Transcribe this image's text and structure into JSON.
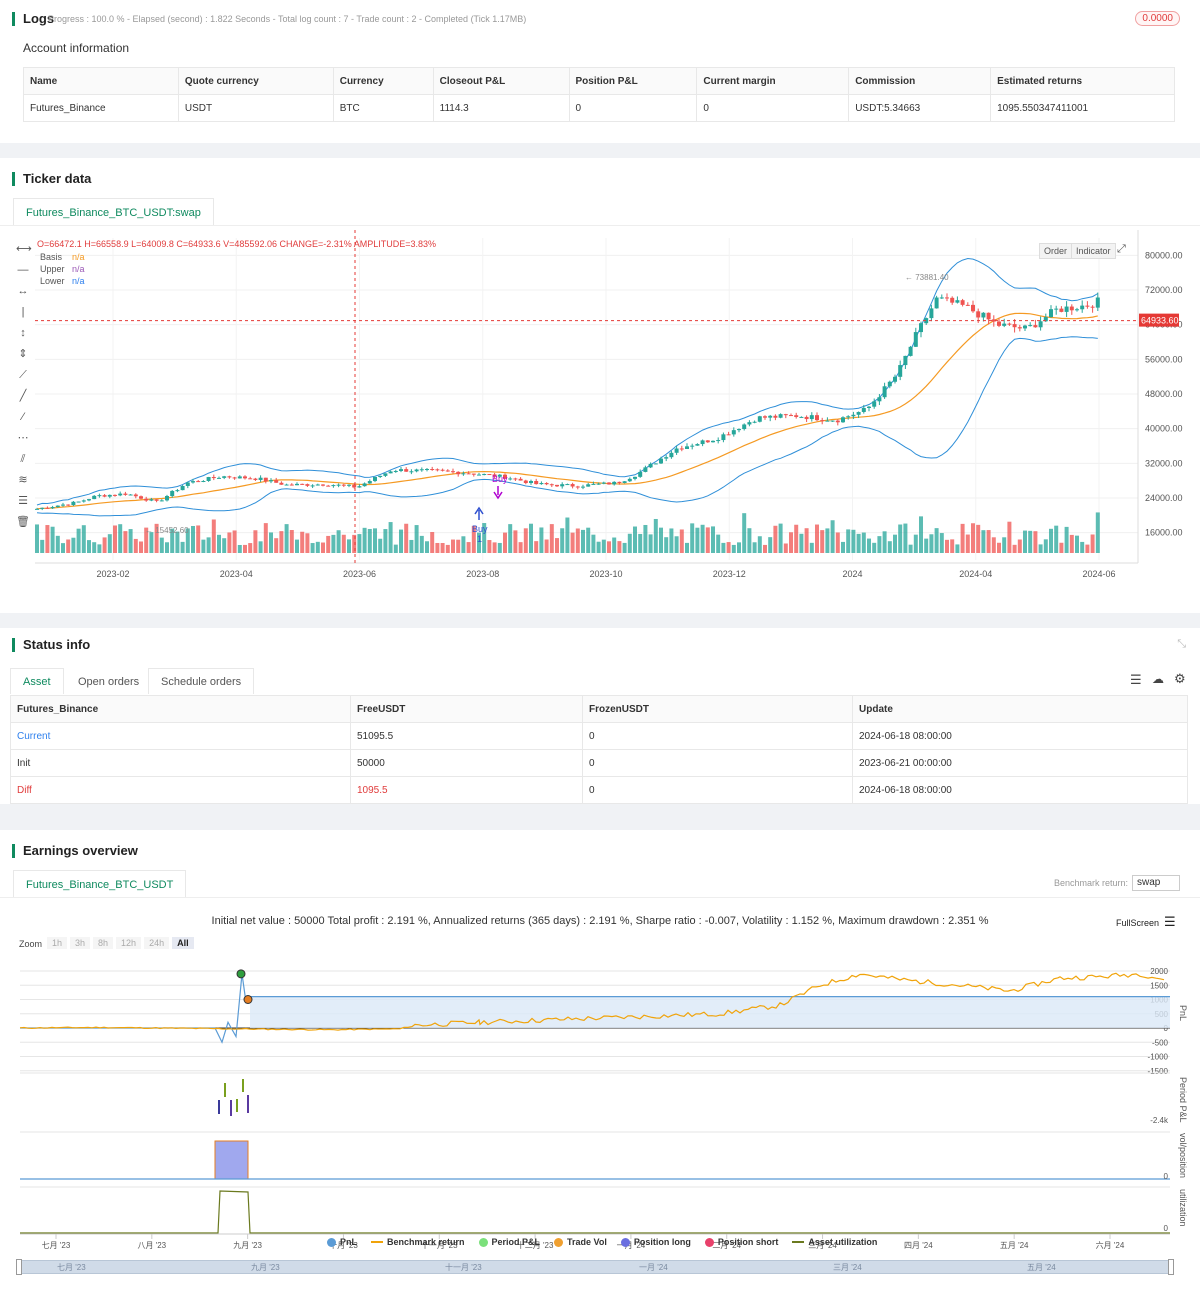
{
  "logs": {
    "title": "Logs",
    "progress": "Progress : 100.0 % - Elapsed (second) : 1.822  Seconds - Total log count : 7 - Trade count : 2 - Completed (Tick 1.17MB)",
    "badge": "0.0000",
    "account_title": "Account information",
    "account_headers": [
      "Name",
      "Quote currency",
      "Currency",
      "Closeout P&L",
      "Position P&L",
      "Current margin",
      "Commission",
      "Estimated returns"
    ],
    "account_row": [
      "Futures_Binance",
      "USDT",
      "BTC",
      "1114.3",
      "0",
      "0",
      "USDT:5.34663",
      "1095.550347411001"
    ]
  },
  "ticker": {
    "title": "Ticker data",
    "tab": "Futures_Binance_BTC_USDT:swap",
    "ohlc": "O=66472.1 H=66558.9 L=64009.8 C=64933.6 V=485592.06 CHANGE=-2.31% AMPLITUDE=3.83%",
    "legend": [
      {
        "name": "Basis",
        "value": "n/a",
        "color": "#f59a23"
      },
      {
        "name": "Upper",
        "value": "n/a",
        "color": "#9b59b6"
      },
      {
        "name": "Lower",
        "value": "n/a",
        "color": "#2f80ed"
      }
    ],
    "buttons": [
      "Order",
      "Indicator"
    ],
    "price_ticks": [
      "80000.00",
      "72000.00",
      "64000.00",
      "56000.00",
      "48000.00",
      "40000.00",
      "32000.00",
      "24000.00",
      "16000.00"
    ],
    "current_price": "64933.60",
    "x_ticks": [
      "2023-02",
      "2023-04",
      "2023-06",
      "2023-08",
      "2023-10",
      "2023-12",
      "2024",
      "2024-04",
      "2024-06"
    ],
    "high_label": "73881.40",
    "low_label": "15452.60",
    "buy_label": "Buy",
    "buy_count": "1"
  },
  "status": {
    "title": "Status info",
    "tabs": [
      "Asset",
      "Open orders",
      "Schedule orders"
    ],
    "headers": [
      "Futures_Binance",
      "FreeUSDT",
      "FrozenUSDT",
      "Update"
    ],
    "rows": [
      {
        "label": "Current",
        "free": "51095.5",
        "frozen": "0",
        "update": "2024-06-18 08:00:00"
      },
      {
        "label": "Init",
        "free": "50000",
        "frozen": "0",
        "update": "2023-06-21 00:00:00"
      },
      {
        "label": "Diff",
        "free": "1095.5",
        "frozen": "0",
        "update": "2024-06-18 08:00:00"
      }
    ]
  },
  "earnings": {
    "title": "Earnings overview",
    "tab": "Futures_Binance_BTC_USDT",
    "benchmark_label": "Benchmark return:",
    "benchmark_value": "swap",
    "summary": "Initial net value : 50000  Total profit : 2.191 %, Annualized returns (365 days) : 2.191 %, Sharpe ratio : -0.007, Volatility : 1.152 %, Maximum drawdown : 2.351 %",
    "fullscreen": "FullScreen",
    "zoom_label": "Zoom",
    "zoom_options": [
      "1h",
      "3h",
      "8h",
      "12h",
      "24h",
      "All"
    ],
    "y_ticks": [
      "2000",
      "1500",
      "1000",
      "500",
      "0",
      "-500",
      "-1000",
      "-1500"
    ],
    "period_tick": "-2.4k",
    "pos_tick": "0",
    "util_tick": "0",
    "axis_titles": [
      "PnL",
      "Period P&L",
      "vol/position",
      "utilization"
    ],
    "x_ticks": [
      "七月 '23",
      "八月 '23",
      "九月 '23",
      "十月 '23",
      "十一月 '23",
      "十二月 '23",
      "一月 '24",
      "二月 '24",
      "三月 '24",
      "四月 '24",
      "五月 '24",
      "六月 '24"
    ],
    "legend": [
      {
        "name": "PnL",
        "color": "#5b9bd5",
        "kind": "dot"
      },
      {
        "name": "Benchmark return",
        "color": "#f0a30a",
        "kind": "line"
      },
      {
        "name": "Period P&L",
        "color": "#7be07b",
        "kind": "dot"
      },
      {
        "name": "Trade Vol",
        "color": "#f0a030",
        "kind": "dot"
      },
      {
        "name": "Position long",
        "color": "#6b6fe0",
        "kind": "dot"
      },
      {
        "name": "Position short",
        "color": "#e8416b",
        "kind": "dot"
      },
      {
        "name": "Asset utilization",
        "color": "#6b7a1f",
        "kind": "line"
      }
    ],
    "navigator_ticks": [
      "七月 '23",
      "九月 '23",
      "十一月 '23",
      "一月 '24",
      "三月 '24",
      "五月 '24"
    ]
  }
}
